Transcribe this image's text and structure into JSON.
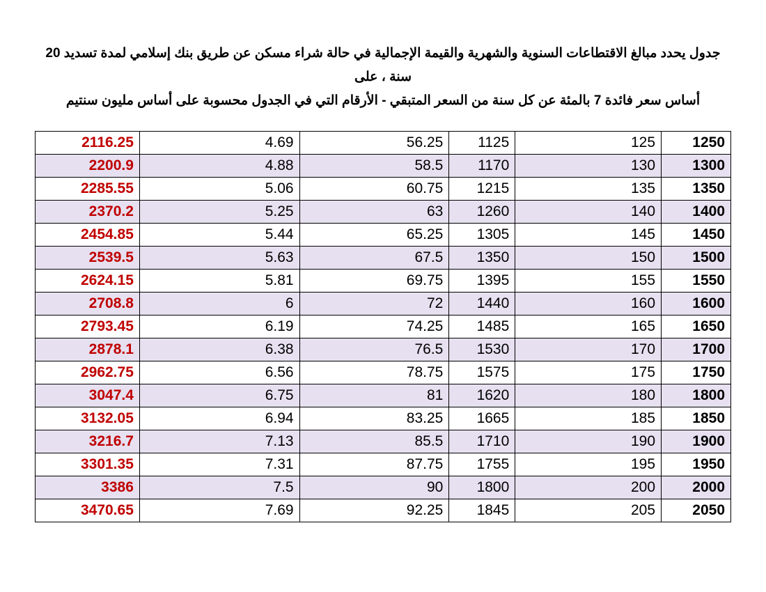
{
  "header": {
    "line1": "جدول يحدد مبالغ الاقتطاعات السنوية والشهرية والقيمة الإجمالية في حالة شراء مسكن عن طريق بنك إسلامي  لمدة  تسديد 20 سنة ، على",
    "line2": "أساس  سعر فائدة 7 بالمئة عن كل سنة من السعر المتبقي  - الأرقام  التي في الجدول محسوبة على أساس مليون سنتيم"
  },
  "table": {
    "row_colors": {
      "odd": "#ffffff",
      "even": "#e6e0f0"
    },
    "text_colors": {
      "total": "#c00000",
      "normal": "#000000"
    },
    "border_color": "#000000",
    "columns": [
      {
        "key": "total",
        "class": "col-total"
      },
      {
        "key": "monthly",
        "class": "col-monthly"
      },
      {
        "key": "annual",
        "class": "col-annual"
      },
      {
        "key": "remain",
        "class": "col-remain"
      },
      {
        "key": "down",
        "class": "col-down"
      },
      {
        "key": "price",
        "class": "col-price"
      }
    ],
    "rows": [
      {
        "total": "2116.25",
        "monthly": "4.69",
        "annual": "56.25",
        "remain": "1125",
        "down": "125",
        "price": "1250"
      },
      {
        "total": "2200.9",
        "monthly": "4.88",
        "annual": "58.5",
        "remain": "1170",
        "down": "130",
        "price": "1300"
      },
      {
        "total": "2285.55",
        "monthly": "5.06",
        "annual": "60.75",
        "remain": "1215",
        "down": "135",
        "price": "1350"
      },
      {
        "total": "2370.2",
        "monthly": "5.25",
        "annual": "63",
        "remain": "1260",
        "down": "140",
        "price": "1400"
      },
      {
        "total": "2454.85",
        "monthly": "5.44",
        "annual": "65.25",
        "remain": "1305",
        "down": "145",
        "price": "1450"
      },
      {
        "total": "2539.5",
        "monthly": "5.63",
        "annual": "67.5",
        "remain": "1350",
        "down": "150",
        "price": "1500"
      },
      {
        "total": "2624.15",
        "monthly": "5.81",
        "annual": "69.75",
        "remain": "1395",
        "down": "155",
        "price": "1550"
      },
      {
        "total": "2708.8",
        "monthly": "6",
        "annual": "72",
        "remain": "1440",
        "down": "160",
        "price": "1600"
      },
      {
        "total": "2793.45",
        "monthly": "6.19",
        "annual": "74.25",
        "remain": "1485",
        "down": "165",
        "price": "1650"
      },
      {
        "total": "2878.1",
        "monthly": "6.38",
        "annual": "76.5",
        "remain": "1530",
        "down": "170",
        "price": "1700"
      },
      {
        "total": "2962.75",
        "monthly": "6.56",
        "annual": "78.75",
        "remain": "1575",
        "down": "175",
        "price": "1750"
      },
      {
        "total": "3047.4",
        "monthly": "6.75",
        "annual": "81",
        "remain": "1620",
        "down": "180",
        "price": "1800"
      },
      {
        "total": "3132.05",
        "monthly": "6.94",
        "annual": "83.25",
        "remain": "1665",
        "down": "185",
        "price": "1850"
      },
      {
        "total": "3216.7",
        "monthly": "7.13",
        "annual": "85.5",
        "remain": "1710",
        "down": "190",
        "price": "1900"
      },
      {
        "total": "3301.35",
        "monthly": "7.31",
        "annual": "87.75",
        "remain": "1755",
        "down": "195",
        "price": "1950"
      },
      {
        "total": "3386",
        "monthly": "7.5",
        "annual": "90",
        "remain": "1800",
        "down": "200",
        "price": "2000"
      },
      {
        "total": "3470.65",
        "monthly": "7.69",
        "annual": "92.25",
        "remain": "1845",
        "down": "205",
        "price": "2050"
      }
    ]
  }
}
